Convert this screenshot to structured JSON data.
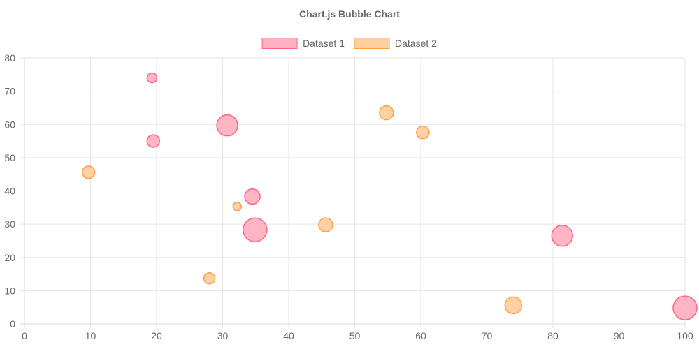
{
  "chart_data": {
    "type": "bubble",
    "title": "Chart.js Bubble Chart",
    "xlim": [
      0,
      100
    ],
    "ylim": [
      0,
      80
    ],
    "xticks": [
      0,
      10,
      20,
      30,
      40,
      50,
      60,
      70,
      80,
      90,
      100
    ],
    "yticks": [
      0,
      10,
      20,
      30,
      40,
      50,
      60,
      70,
      80
    ],
    "grid": true,
    "legend_position": "top",
    "series": [
      {
        "name": "Dataset 1",
        "fill": "#ffb1c1",
        "stroke": "#ff6384",
        "points": [
          {
            "x": 19.3,
            "y": 74,
            "r": 7
          },
          {
            "x": 19.5,
            "y": 55,
            "r": 9
          },
          {
            "x": 30.7,
            "y": 59.7,
            "r": 15
          },
          {
            "x": 34.5,
            "y": 38.3,
            "r": 11
          },
          {
            "x": 34.9,
            "y": 28.3,
            "r": 17
          },
          {
            "x": 81.4,
            "y": 26.5,
            "r": 15
          },
          {
            "x": 100,
            "y": 4.8,
            "r": 17
          }
        ]
      },
      {
        "name": "Dataset 2",
        "fill": "#ffcf9f",
        "stroke": "#ff9f40",
        "points": [
          {
            "x": 9.7,
            "y": 45.6,
            "r": 9
          },
          {
            "x": 32.2,
            "y": 35.3,
            "r": 6
          },
          {
            "x": 45.6,
            "y": 29.8,
            "r": 10
          },
          {
            "x": 28.0,
            "y": 13.7,
            "r": 8
          },
          {
            "x": 54.8,
            "y": 63.5,
            "r": 10
          },
          {
            "x": 60.3,
            "y": 57.6,
            "r": 9
          },
          {
            "x": 74.0,
            "y": 5.6,
            "r": 12
          }
        ]
      }
    ]
  }
}
